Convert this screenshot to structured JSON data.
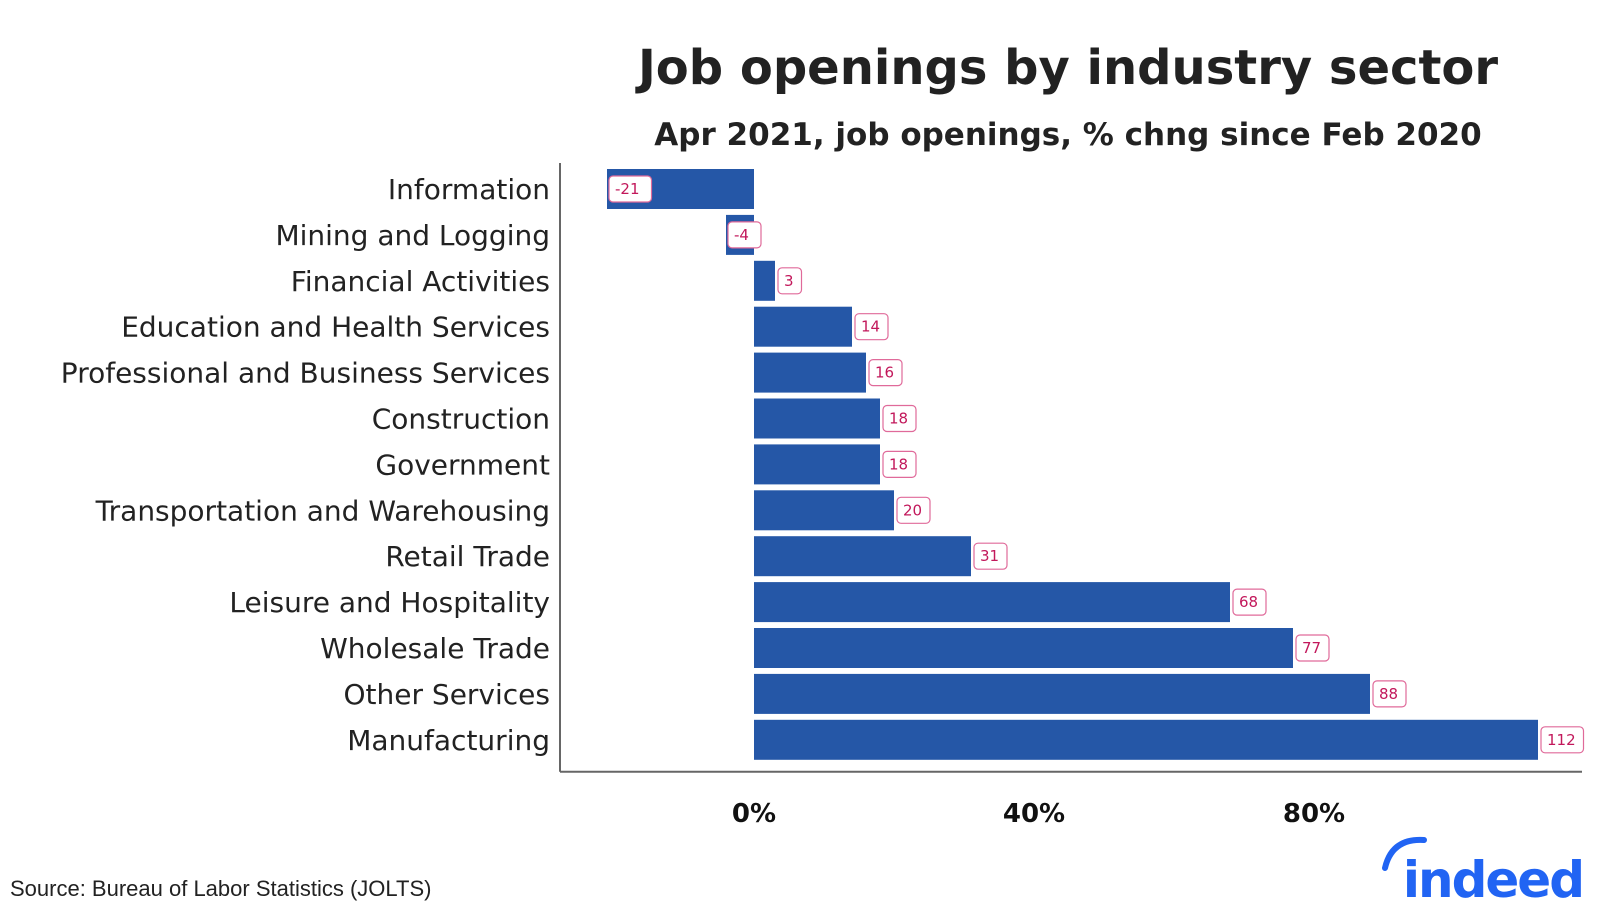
{
  "colors": {
    "bar": "#2557a7",
    "label_text": "#c2185b",
    "label_border": "#e06a9a",
    "axis": "#666666",
    "logo": "#2164f3"
  },
  "source": "Source: Bureau of Labor Statistics (JOLTS)",
  "logo_text": "indeed",
  "chart_data": {
    "type": "bar",
    "orientation": "horizontal",
    "title": "Job openings by industry sector",
    "subtitle": "Apr 2021, job openings, % chng since Feb 2020",
    "xlabel": "",
    "ylabel": "",
    "categories": [
      "Information",
      "Mining and Logging",
      "Financial Activities",
      "Education and Health Services",
      "Professional and Business Services",
      "Construction",
      "Government",
      "Transportation and Warehousing",
      "Retail Trade",
      "Leisure and Hospitality",
      "Wholesale Trade",
      "Other Services",
      "Manufacturing"
    ],
    "values": [
      -21,
      -4,
      3,
      14,
      16,
      18,
      18,
      20,
      31,
      68,
      77,
      88,
      112
    ],
    "data_labels": [
      "-21",
      "-4",
      "3",
      "14",
      "16",
      "18",
      "18",
      "20",
      "31",
      "68",
      "77",
      "88",
      "112"
    ],
    "xlim": [
      -27,
      118
    ],
    "xticks": [
      0,
      40,
      80
    ],
    "xtick_labels": [
      "0%",
      "40%",
      "80%"
    ],
    "grid": false,
    "legend": "none"
  }
}
